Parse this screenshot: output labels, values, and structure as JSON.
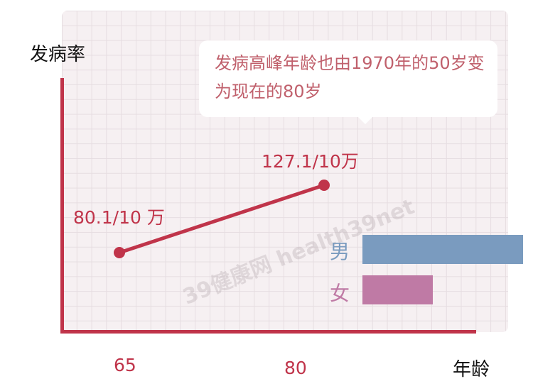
{
  "chart_data": {
    "type": "line",
    "ylabel": "发病率",
    "xlabel": "年龄",
    "x": [
      65,
      80
    ],
    "y": [
      80.1,
      127.1
    ],
    "x_tick_labels": [
      "65",
      "80"
    ],
    "data_labels": [
      "80.1/10 万",
      "127.1/10万"
    ],
    "annotation": "发病高峰年龄也由1970年的50岁变为现在的80岁",
    "grid": true,
    "line_color": "#c0344a",
    "bars": {
      "type": "bar",
      "categories": [
        "男",
        "女"
      ],
      "relative_values": [
        1.0,
        0.44
      ],
      "colors": [
        "#7a9bbf",
        "#bf7aa5"
      ]
    }
  },
  "watermark": "39健康网 health39net"
}
